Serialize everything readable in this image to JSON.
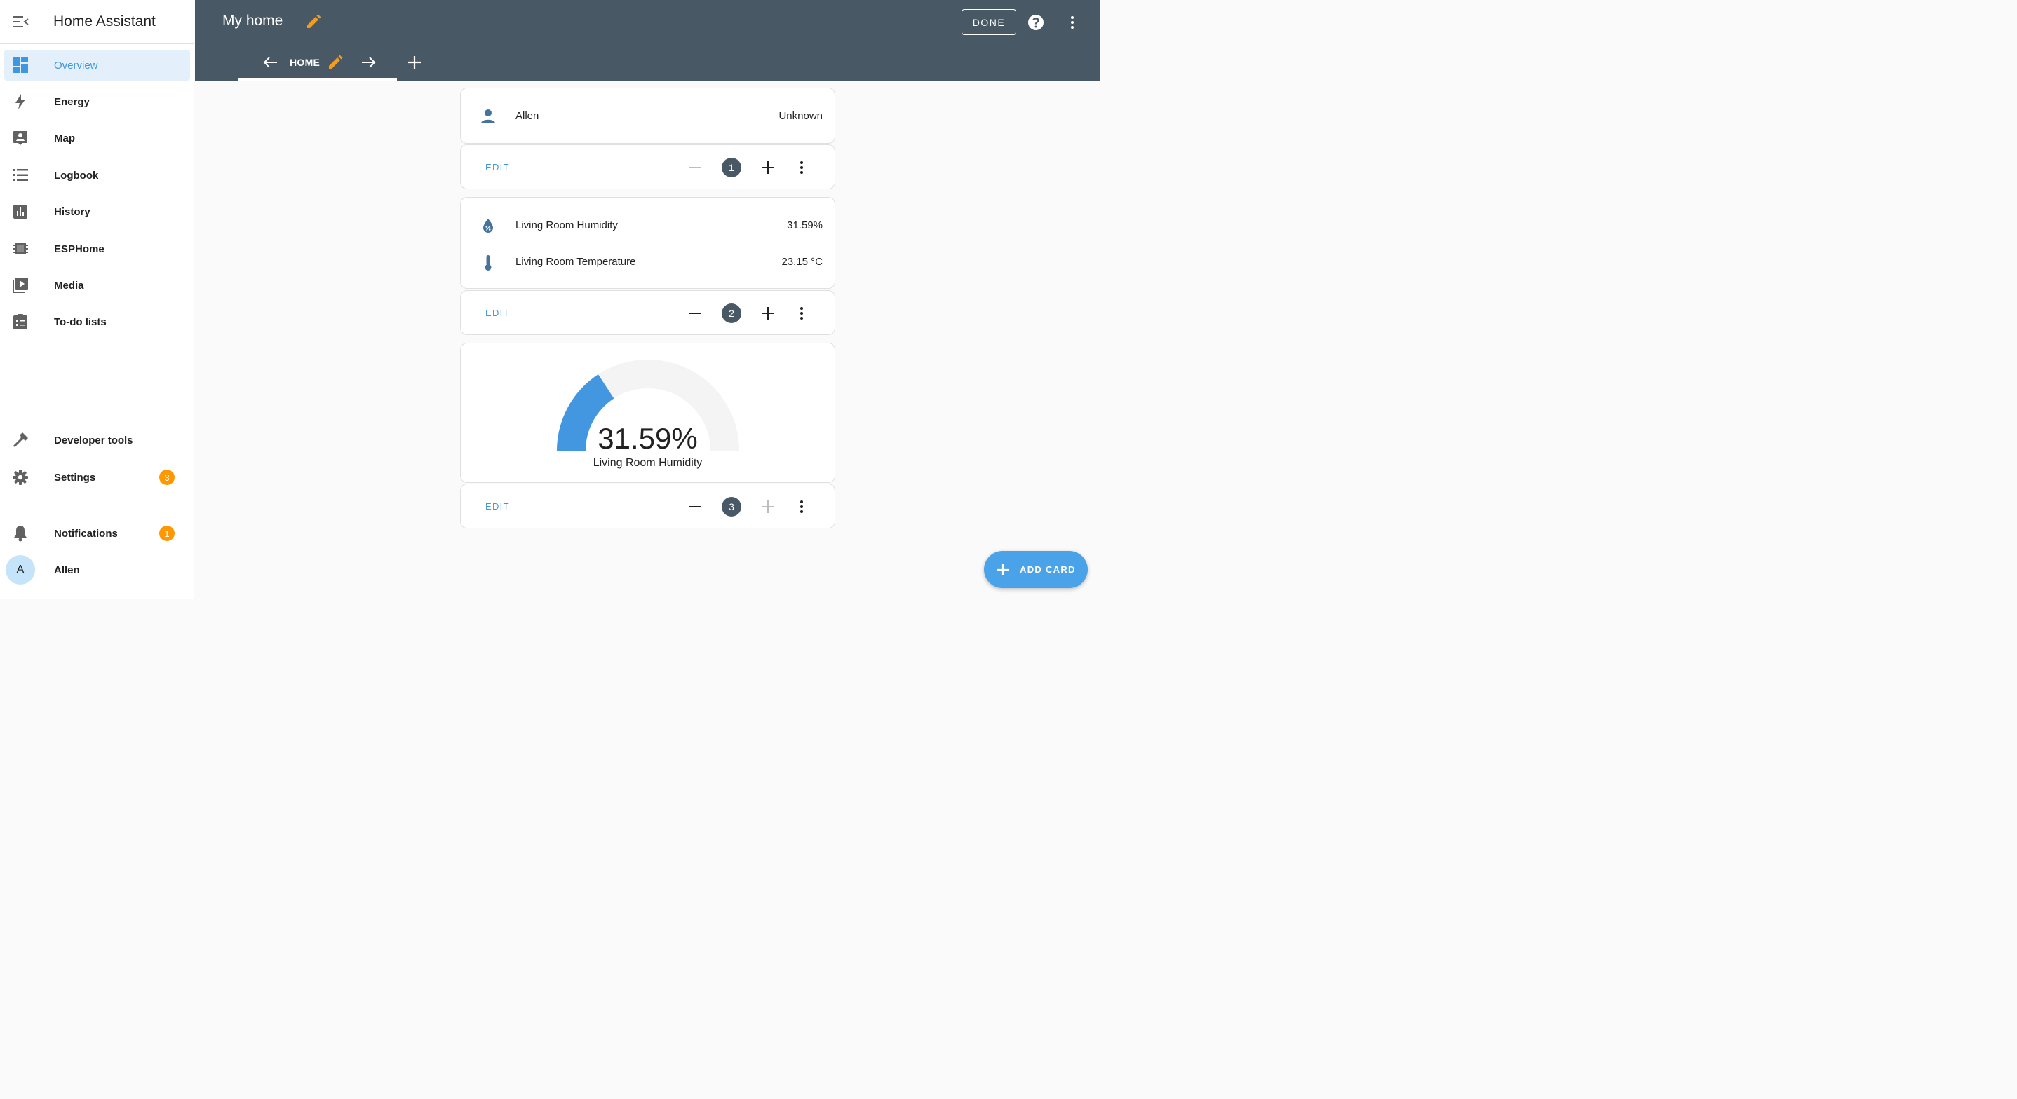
{
  "app": {
    "title": "Home Assistant"
  },
  "sidebar": {
    "items": [
      {
        "label": "Overview",
        "icon": "dashboard-icon",
        "active": true
      },
      {
        "label": "Energy",
        "icon": "lightning-icon"
      },
      {
        "label": "Map",
        "icon": "map-icon"
      },
      {
        "label": "Logbook",
        "icon": "logbook-icon"
      },
      {
        "label": "History",
        "icon": "history-chart-icon"
      },
      {
        "label": "ESPHome",
        "icon": "chip-icon"
      },
      {
        "label": "Media",
        "icon": "media-icon"
      },
      {
        "label": "To-do lists",
        "icon": "clipboard-list-icon"
      }
    ],
    "bottom": {
      "developer_tools": "Developer tools",
      "settings": "Settings",
      "settings_badge": "3",
      "notifications": "Notifications",
      "notifications_badge": "1",
      "user_name": "Allen",
      "user_initial": "A"
    }
  },
  "header": {
    "dashboard_title": "My home",
    "done_label": "DONE",
    "tab_label": "HOME"
  },
  "cards": [
    {
      "rows": [
        {
          "name": "Allen",
          "value": "Unknown",
          "icon": "person-icon"
        }
      ],
      "edit_label": "EDIT",
      "position": "1"
    },
    {
      "rows": [
        {
          "name": "Living Room Humidity",
          "value": "31.59%",
          "icon": "humidity-icon"
        },
        {
          "name": "Living Room Temperature",
          "value": "23.15 °C",
          "icon": "thermometer-icon"
        }
      ],
      "edit_label": "EDIT",
      "position": "2"
    },
    {
      "gauge": {
        "value_text": "31.59%",
        "name": "Living Room Humidity",
        "value": 31.59,
        "min": 0,
        "max": 100
      },
      "edit_label": "EDIT",
      "position": "3"
    }
  ],
  "fab": {
    "label": "ADD CARD"
  },
  "colors": {
    "header_bg": "#485864",
    "accent": "#3f97e0",
    "edit_pencil": "#f39c1f",
    "badge": "#ff9800",
    "gauge_fill": "#4297e0",
    "gauge_track": "#f4f4f4"
  }
}
